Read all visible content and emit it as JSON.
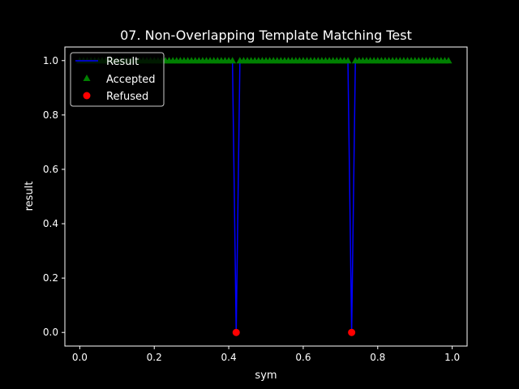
{
  "chart_data": {
    "type": "line",
    "title": "07. Non-Overlapping Template Matching Test",
    "xlabel": "sym",
    "ylabel": "result",
    "xlim": [
      -0.04,
      1.04
    ],
    "ylim": [
      -0.05,
      1.05
    ],
    "xticks": [
      0.0,
      0.2,
      0.4,
      0.6,
      0.8,
      1.0
    ],
    "xtick_labels": [
      "0.0",
      "0.2",
      "0.4",
      "0.6",
      "0.8",
      "1.0"
    ],
    "yticks": [
      0.0,
      0.2,
      0.4,
      0.6,
      0.8,
      1.0
    ],
    "ytick_labels": [
      "0.0",
      "0.2",
      "0.4",
      "0.6",
      "0.8",
      "1.0"
    ],
    "grid": false,
    "legend_position": "upper-left",
    "x": [
      0.0,
      0.01,
      0.02,
      0.03,
      0.04,
      0.05,
      0.06,
      0.07,
      0.08,
      0.09,
      0.1,
      0.11,
      0.12,
      0.13,
      0.14,
      0.15,
      0.16,
      0.17,
      0.18,
      0.19,
      0.2,
      0.21,
      0.22,
      0.23,
      0.24,
      0.25,
      0.26,
      0.27,
      0.28,
      0.29,
      0.3,
      0.31,
      0.32,
      0.33,
      0.34,
      0.35,
      0.36,
      0.37,
      0.38,
      0.39,
      0.4,
      0.41,
      0.42,
      0.43,
      0.44,
      0.45,
      0.46,
      0.47,
      0.48,
      0.49,
      0.5,
      0.51,
      0.52,
      0.53,
      0.54,
      0.55,
      0.56,
      0.57,
      0.58,
      0.59,
      0.6,
      0.61,
      0.62,
      0.63,
      0.64,
      0.65,
      0.66,
      0.67,
      0.68,
      0.69,
      0.7,
      0.71,
      0.72,
      0.73,
      0.74,
      0.75,
      0.76,
      0.77,
      0.78,
      0.79,
      0.8,
      0.81,
      0.82,
      0.83,
      0.84,
      0.85,
      0.86,
      0.87,
      0.88,
      0.89,
      0.9,
      0.91,
      0.92,
      0.93,
      0.94,
      0.95,
      0.96,
      0.97,
      0.98,
      0.99
    ],
    "series": [
      {
        "name": "Result",
        "kind": "line",
        "color": "#0000ff",
        "values": [
          1,
          1,
          1,
          1,
          1,
          1,
          1,
          1,
          1,
          1,
          1,
          1,
          1,
          1,
          1,
          1,
          1,
          1,
          1,
          1,
          1,
          1,
          1,
          1,
          1,
          1,
          1,
          1,
          1,
          1,
          1,
          1,
          1,
          1,
          1,
          1,
          1,
          1,
          1,
          1,
          1,
          1,
          0,
          1,
          1,
          1,
          1,
          1,
          1,
          1,
          1,
          1,
          1,
          1,
          1,
          1,
          1,
          1,
          1,
          1,
          1,
          1,
          1,
          1,
          1,
          1,
          1,
          1,
          1,
          1,
          1,
          1,
          1,
          0,
          1,
          1,
          1,
          1,
          1,
          1,
          1,
          1,
          1,
          1,
          1,
          1,
          1,
          1,
          1,
          1,
          1,
          1,
          1,
          1,
          1,
          1,
          1,
          1,
          1,
          1
        ]
      },
      {
        "name": "Accepted",
        "kind": "scatter",
        "marker": "triangle",
        "color": "#008000",
        "rule": "value == 1"
      },
      {
        "name": "Refused",
        "kind": "scatter",
        "marker": "circle",
        "color": "#ff0000",
        "rule": "value == 0"
      }
    ]
  }
}
